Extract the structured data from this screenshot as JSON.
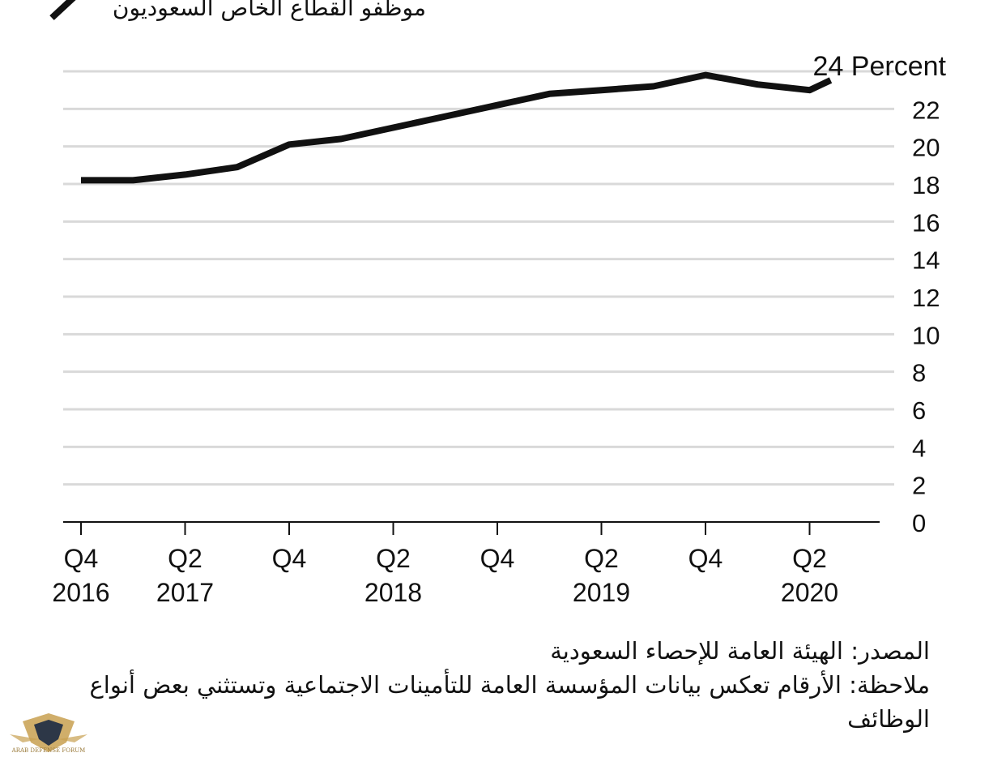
{
  "chart_data": {
    "type": "line",
    "legend": {
      "label": "موظفو القطاع الخاص السعوديون",
      "placement": "top-left"
    },
    "end_label": "24 Percent",
    "ylim": [
      0,
      24
    ],
    "y_ticks": [
      0,
      2,
      4,
      6,
      8,
      10,
      12,
      14,
      16,
      18,
      20,
      22
    ],
    "grid": true,
    "x_tick_labels": [
      {
        "quarter": "Q4",
        "year": "2016"
      },
      {
        "quarter": "Q2",
        "year": "2017"
      },
      {
        "quarter": "Q4",
        "year": ""
      },
      {
        "quarter": "Q2",
        "year": "2018"
      },
      {
        "quarter": "Q4",
        "year": ""
      },
      {
        "quarter": "Q2",
        "year": "2019"
      },
      {
        "quarter": "Q4",
        "year": ""
      },
      {
        "quarter": "Q2",
        "year": "2020"
      }
    ],
    "series": [
      {
        "name": "موظفو القطاع الخاص السعوديون",
        "color": "#111111",
        "x": [
          "Q4 2016",
          "Q1 2017",
          "Q2 2017",
          "Q3 2017",
          "Q4 2017",
          "Q1 2018",
          "Q2 2018",
          "Q3 2018",
          "Q4 2018",
          "Q1 2019",
          "Q2 2019",
          "Q3 2019",
          "Q4 2019",
          "Q1 2020",
          "Q2 2020",
          "Q3 2020"
        ],
        "values": [
          18.2,
          18.2,
          18.5,
          18.9,
          20.1,
          20.4,
          21.0,
          21.6,
          22.2,
          22.8,
          23.0,
          23.2,
          23.8,
          23.3,
          23.0,
          24.3
        ]
      }
    ]
  },
  "footer": {
    "source": "المصدر: الهيئة العامة للإحصاء السعودية",
    "note": "ملاحظة: الأرقام تعكس بيانات المؤسسة العامة للتأمينات الاجتماعية وتستثني بعض أنواع الوظائف"
  },
  "watermark": {
    "text": "ARAB DEFENSE FORUM",
    "color": "#c8a050"
  }
}
